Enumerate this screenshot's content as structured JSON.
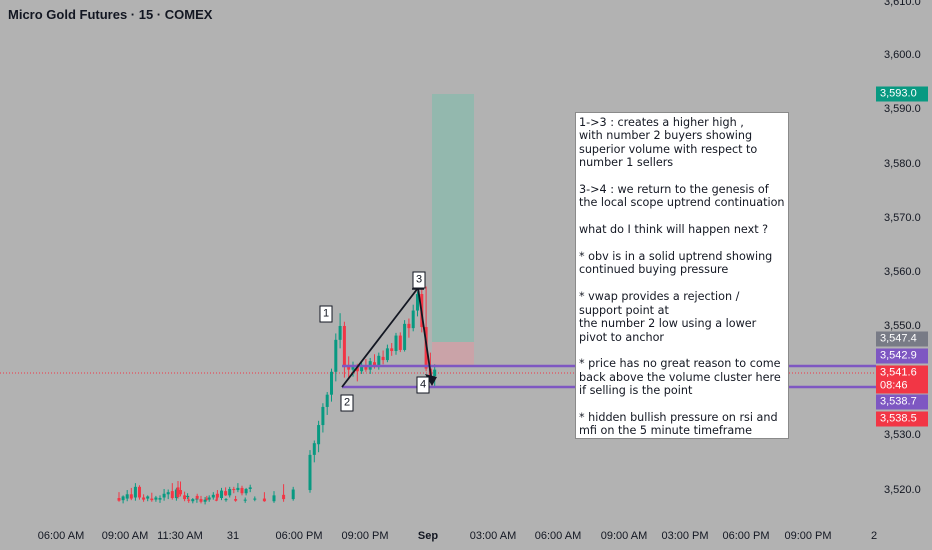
{
  "chart_title": "Micro Gold Futures · 15 · COMEX",
  "colors": {
    "background": "#b2b2b2",
    "up_candle": "#089981",
    "down_candle": "#f23645",
    "level_line": "#7e57c2",
    "trend_line": "#131722",
    "profit_zone": "#93b8ae",
    "loss_zone": "#caa3a8"
  },
  "note_text": "1->3 : creates a higher high ,\nwith number 2 buyers showing\nsuperior volume with respect to\nnumber 1 sellers\n\n3->4 : we return to the genesis of\nthe local scope uptrend continuation\n\nwhat do I think will happen next ?\n\n* obv is in a solid uptrend showing\ncontinued buying pressure\n\n* vwap provides a rejection /\nsupport point at\nthe number 2 low using a lower\npivot to anchor\n\n* price has no great reason to come\nback above the volume cluster here\nif selling is the point\n\n* hidden bullish pressure on rsi and\nmfi on the 5 minute timeframe",
  "wave_labels": [
    "1",
    "2",
    "3",
    "4"
  ],
  "x_axis_labels": [
    "06:00 AM",
    "09:00 AM",
    "11:30 AM",
    "31",
    "06:00 PM",
    "09:00 PM",
    "Sep",
    "03:00 AM",
    "06:00 AM",
    "09:00 AM",
    "03:00 PM",
    "06:00 PM",
    "09:00 PM",
    "2"
  ],
  "y_axis_labels": [
    "3,610.0",
    "3,600.0",
    "3,590.0",
    "3,580.0",
    "3,570.0",
    "3,560.0",
    "3,550.0",
    "3,530.0",
    "3,520.0"
  ],
  "price_badges": [
    {
      "label": "3,593.0",
      "color": "#089981"
    },
    {
      "label": "3,547.4",
      "color": "#787b86"
    },
    {
      "label": "3,542.9",
      "color": "#7e57c2"
    },
    {
      "label": "3,541.6",
      "color": "#f23645"
    },
    {
      "label": "08:46",
      "color": "#f23645"
    },
    {
      "label": "3,538.7",
      "color": "#7e57c2"
    },
    {
      "label": "3,538.5",
      "color": "#f23645"
    }
  ],
  "chart_data": {
    "type": "candlestick",
    "title": "Micro Gold Futures · 15 · COMEX",
    "y_range": [
      3513,
      3611
    ],
    "levels": [
      3542.9,
      3538.7
    ],
    "position": {
      "entry": 3542.9,
      "target": 3593.0,
      "stop": 3547.4
    },
    "candles": [
      {
        "o": 3517.5,
        "h": 3518.6,
        "l": 3516.8,
        "c": 3517.0
      },
      {
        "o": 3517.1,
        "h": 3518.0,
        "l": 3516.5,
        "c": 3517.8
      },
      {
        "o": 3517.4,
        "h": 3519.0,
        "l": 3516.9,
        "c": 3518.2
      },
      {
        "o": 3518.2,
        "h": 3519.4,
        "l": 3517.1,
        "c": 3517.4
      },
      {
        "o": 3517.6,
        "h": 3520.3,
        "l": 3517.0,
        "c": 3519.6
      },
      {
        "o": 3519.6,
        "h": 3519.9,
        "l": 3517.2,
        "c": 3517.6
      },
      {
        "o": 3517.6,
        "h": 3518.2,
        "l": 3516.8,
        "c": 3517.2
      },
      {
        "o": 3517.4,
        "h": 3518.0,
        "l": 3516.9,
        "c": 3517.8
      },
      {
        "o": 3517.4,
        "h": 3518.5,
        "l": 3516.8,
        "c": 3517.1
      },
      {
        "o": 3517.2,
        "h": 3517.9,
        "l": 3516.8,
        "c": 3517.6
      },
      {
        "o": 3517.2,
        "h": 3518.0,
        "l": 3516.6,
        "c": 3517.5
      },
      {
        "o": 3517.6,
        "h": 3519.2,
        "l": 3517.0,
        "c": 3518.3
      },
      {
        "o": 3518.2,
        "h": 3519.1,
        "l": 3517.3,
        "c": 3518.6
      },
      {
        "o": 3518.8,
        "h": 3520.3,
        "l": 3517.2,
        "c": 3517.5
      },
      {
        "o": 3517.5,
        "h": 3519.4,
        "l": 3517.0,
        "c": 3519.1
      },
      {
        "o": 3519.0,
        "h": 3520.6,
        "l": 3517.8,
        "c": 3518.2
      },
      {
        "o": 3518.0,
        "h": 3518.7,
        "l": 3516.9,
        "c": 3517.3
      },
      {
        "o": 3517.2,
        "h": 3517.9,
        "l": 3516.6,
        "c": 3517.0
      },
      {
        "o": 3516.9,
        "h": 3517.5,
        "l": 3516.5,
        "c": 3517.3
      },
      {
        "o": 3517.2,
        "h": 3517.8,
        "l": 3516.6,
        "c": 3517.4
      },
      {
        "o": 3517.3,
        "h": 3517.9,
        "l": 3516.5,
        "c": 3516.8
      },
      {
        "o": 3516.8,
        "h": 3517.7,
        "l": 3516.3,
        "c": 3517.2
      },
      {
        "o": 3517.2,
        "h": 3518.0,
        "l": 3516.8,
        "c": 3517.6
      },
      {
        "o": 3517.6,
        "h": 3518.6,
        "l": 3517.2,
        "c": 3518.1
      },
      {
        "o": 3518.3,
        "h": 3519.0,
        "l": 3517.2,
        "c": 3517.6
      },
      {
        "o": 3517.5,
        "h": 3519.4,
        "l": 3517.1,
        "c": 3518.9
      },
      {
        "o": 3518.8,
        "h": 3519.5,
        "l": 3517.9,
        "c": 3518.0
      },
      {
        "o": 3518.0,
        "h": 3519.6,
        "l": 3517.6,
        "c": 3519.2
      },
      {
        "o": 3519.2,
        "h": 3519.6,
        "l": 3518.4,
        "c": 3519.0
      },
      {
        "o": 3519.0,
        "h": 3520.3,
        "l": 3518.6,
        "c": 3519.4
      },
      {
        "o": 3519.4,
        "h": 3519.8,
        "l": 3518.0,
        "c": 3518.4
      },
      {
        "o": 3518.4,
        "h": 3519.4,
        "l": 3518.0,
        "c": 3519.2
      },
      {
        "o": 3519.2,
        "h": 3520.0,
        "l": 3518.6,
        "c": 3519.5
      },
      {
        "o": 3519.5,
        "h": 3520.7,
        "l": 3517.4,
        "c": 3517.7
      },
      {
        "o": 3517.7,
        "h": 3518.4,
        "l": 3517.3,
        "c": 3517.9
      },
      {
        "o": 3517.9,
        "h": 3518.3,
        "l": 3517.2,
        "c": 3517.4
      },
      {
        "o": 3517.4,
        "h": 3517.9,
        "l": 3517.0,
        "c": 3517.2
      },
      {
        "o": 3517.2,
        "h": 3517.7,
        "l": 3516.9,
        "c": 3517.1
      },
      {
        "o": 3517.1,
        "h": 3517.5,
        "l": 3516.8,
        "c": 3517.3
      },
      {
        "o": 3517.3,
        "h": 3517.9,
        "l": 3516.8,
        "c": 3517.0
      },
      {
        "o": 3517.0,
        "h": 3517.6,
        "l": 3516.6,
        "c": 3517.2
      },
      {
        "o": 3517.2,
        "h": 3517.8,
        "l": 3516.9,
        "c": 3517.4
      },
      {
        "o": 3517.4,
        "h": 3518.6,
        "l": 3516.8,
        "c": 3516.9
      },
      {
        "o": 3516.9,
        "h": 3518.8,
        "l": 3516.6,
        "c": 3518.0
      },
      {
        "o": 3518.1,
        "h": 3520.1,
        "l": 3516.8,
        "c": 3517.3
      },
      {
        "o": 3517.3,
        "h": 3519.6,
        "l": 3517.0,
        "c": 3519.1
      },
      {
        "o": 3519.0,
        "h": 3526.5,
        "l": 3518.5,
        "c": 3525.6
      },
      {
        "o": 3525.6,
        "h": 3528.3,
        "l": 3524.2,
        "c": 3527.8
      },
      {
        "o": 3527.6,
        "h": 3532.0,
        "l": 3526.1,
        "c": 3531.2
      },
      {
        "o": 3531.2,
        "h": 3535.3,
        "l": 3529.8,
        "c": 3534.6
      },
      {
        "o": 3534.6,
        "h": 3537.4,
        "l": 3533.1,
        "c": 3536.9
      },
      {
        "o": 3536.9,
        "h": 3541.8,
        "l": 3535.6,
        "c": 3541.2
      },
      {
        "o": 3541.2,
        "h": 3548.4,
        "l": 3539.4,
        "c": 3547.2
      },
      {
        "o": 3547.2,
        "h": 3552.2,
        "l": 3545.6,
        "c": 3549.8
      },
      {
        "o": 3549.8,
        "h": 3550.6,
        "l": 3540.1,
        "c": 3542.4
      },
      {
        "o": 3542.4,
        "h": 3544.1,
        "l": 3539.8,
        "c": 3541.6
      },
      {
        "o": 3541.6,
        "h": 3543.1,
        "l": 3540.3,
        "c": 3542.4
      },
      {
        "o": 3542.4,
        "h": 3542.7,
        "l": 3539.4,
        "c": 3541.3
      },
      {
        "o": 3541.3,
        "h": 3543.0,
        "l": 3540.8,
        "c": 3542.5
      },
      {
        "o": 3542.2,
        "h": 3543.6,
        "l": 3541.2,
        "c": 3541.6
      },
      {
        "o": 3541.6,
        "h": 3543.8,
        "l": 3540.8,
        "c": 3543.2
      },
      {
        "o": 3543.0,
        "h": 3544.5,
        "l": 3541.8,
        "c": 3542.1
      },
      {
        "o": 3542.1,
        "h": 3544.8,
        "l": 3541.6,
        "c": 3544.2
      },
      {
        "o": 3544.0,
        "h": 3545.2,
        "l": 3542.6,
        "c": 3543.4
      },
      {
        "o": 3543.4,
        "h": 3546.3,
        "l": 3543.0,
        "c": 3545.6
      },
      {
        "o": 3545.6,
        "h": 3546.6,
        "l": 3544.2,
        "c": 3545.1
      },
      {
        "o": 3545.1,
        "h": 3548.5,
        "l": 3544.4,
        "c": 3548.0
      },
      {
        "o": 3548.0,
        "h": 3548.6,
        "l": 3544.9,
        "c": 3545.3
      },
      {
        "o": 3545.3,
        "h": 3550.9,
        "l": 3545.0,
        "c": 3550.2
      },
      {
        "o": 3550.2,
        "h": 3551.2,
        "l": 3547.6,
        "c": 3549.4
      },
      {
        "o": 3549.4,
        "h": 3553.8,
        "l": 3548.8,
        "c": 3552.7
      },
      {
        "o": 3552.7,
        "h": 3556.3,
        "l": 3551.6,
        "c": 3555.8
      },
      {
        "o": 3555.8,
        "h": 3557.1,
        "l": 3548.6,
        "c": 3549.6
      },
      {
        "o": 3549.6,
        "h": 3557.2,
        "l": 3541.3,
        "c": 3541.8
      },
      {
        "o": 3541.8,
        "h": 3544.8,
        "l": 3539.2,
        "c": 3540.4
      },
      {
        "o": 3540.4,
        "h": 3542.6,
        "l": 3538.2,
        "c": 3541.6
      }
    ]
  }
}
